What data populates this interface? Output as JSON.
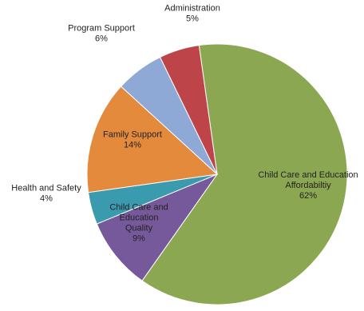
{
  "chart_data": {
    "type": "pie",
    "title": "",
    "slices": [
      {
        "label_lines": [
          "Child  Care and Education",
          "Affordabiltiy"
        ],
        "pct_label": "62%",
        "value": 62,
        "color": "#8BA752"
      },
      {
        "label_lines": [
          "Child Care and",
          "Education",
          "Quality"
        ],
        "pct_label": "9%",
        "value": 9,
        "color": "#76599A"
      },
      {
        "label_lines": [
          "Health and Safety"
        ],
        "pct_label": "4%",
        "value": 4,
        "color": "#3A9AAE"
      },
      {
        "label_lines": [
          "Family Support"
        ],
        "pct_label": "14%",
        "value": 14,
        "color": "#E38A3C"
      },
      {
        "label_lines": [
          "Program Support"
        ],
        "pct_label": "6%",
        "value": 6,
        "color": "#8EA9D6"
      },
      {
        "label_lines": [
          "Administration"
        ],
        "pct_label": "5%",
        "value": 5,
        "color": "#BD4448"
      }
    ]
  }
}
